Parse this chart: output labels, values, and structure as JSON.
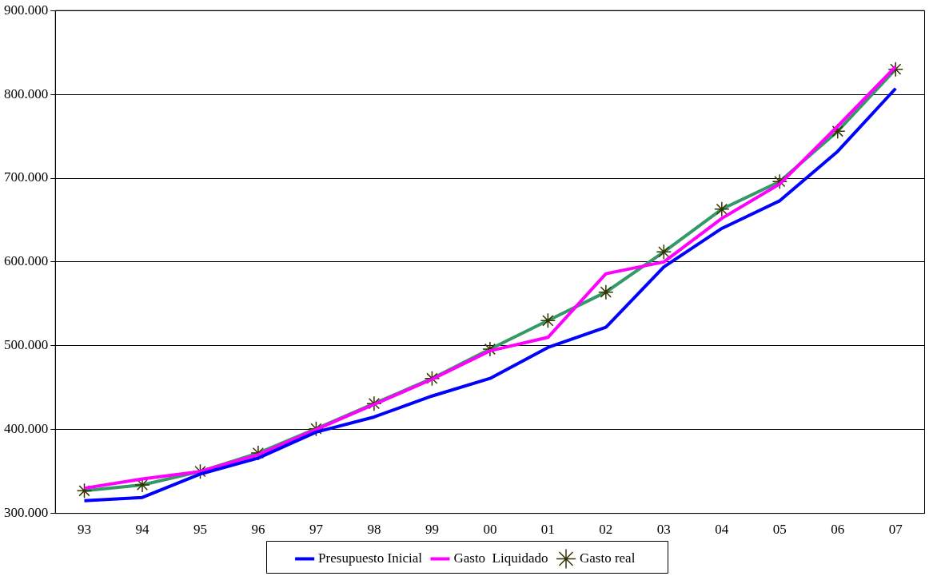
{
  "chart_data": {
    "type": "line",
    "categories": [
      "93",
      "94",
      "95",
      "96",
      "97",
      "98",
      "99",
      "00",
      "01",
      "02",
      "03",
      "04",
      "05",
      "06",
      "07"
    ],
    "series": [
      {
        "name": "Presupuesto Inicial",
        "color": "#0000ff",
        "marker": "none",
        "values": [
          315000,
          319000,
          347000,
          366000,
          397000,
          415000,
          440000,
          461000,
          498000,
          522000,
          594000,
          640000,
          673000,
          732000,
          807000
        ]
      },
      {
        "name": "Gasto  Liquidado",
        "color": "#ff00ff",
        "marker": "none",
        "values": [
          330000,
          341000,
          350000,
          370000,
          400000,
          430000,
          460000,
          494000,
          510000,
          586000,
          600000,
          652000,
          693000,
          762000,
          833000
        ]
      },
      {
        "name": "Gasto real",
        "color": "#339966",
        "marker": "cross",
        "values": [
          327000,
          334000,
          350000,
          372000,
          401000,
          431000,
          461000,
          496000,
          530000,
          564000,
          612000,
          663000,
          696000,
          756000,
          830000
        ]
      }
    ],
    "ylim": [
      300000,
      900000
    ],
    "yticks": [
      {
        "value": 300000,
        "label": "300.000"
      },
      {
        "value": 400000,
        "label": "400.000"
      },
      {
        "value": 500000,
        "label": "500.000"
      },
      {
        "value": 600000,
        "label": "600.000"
      },
      {
        "value": 700000,
        "label": "700.000"
      },
      {
        "value": 800000,
        "label": "800.000"
      },
      {
        "value": 900000,
        "label": "900.000"
      }
    ],
    "grid": "y",
    "legend": "bottom",
    "line_style": "solid"
  }
}
